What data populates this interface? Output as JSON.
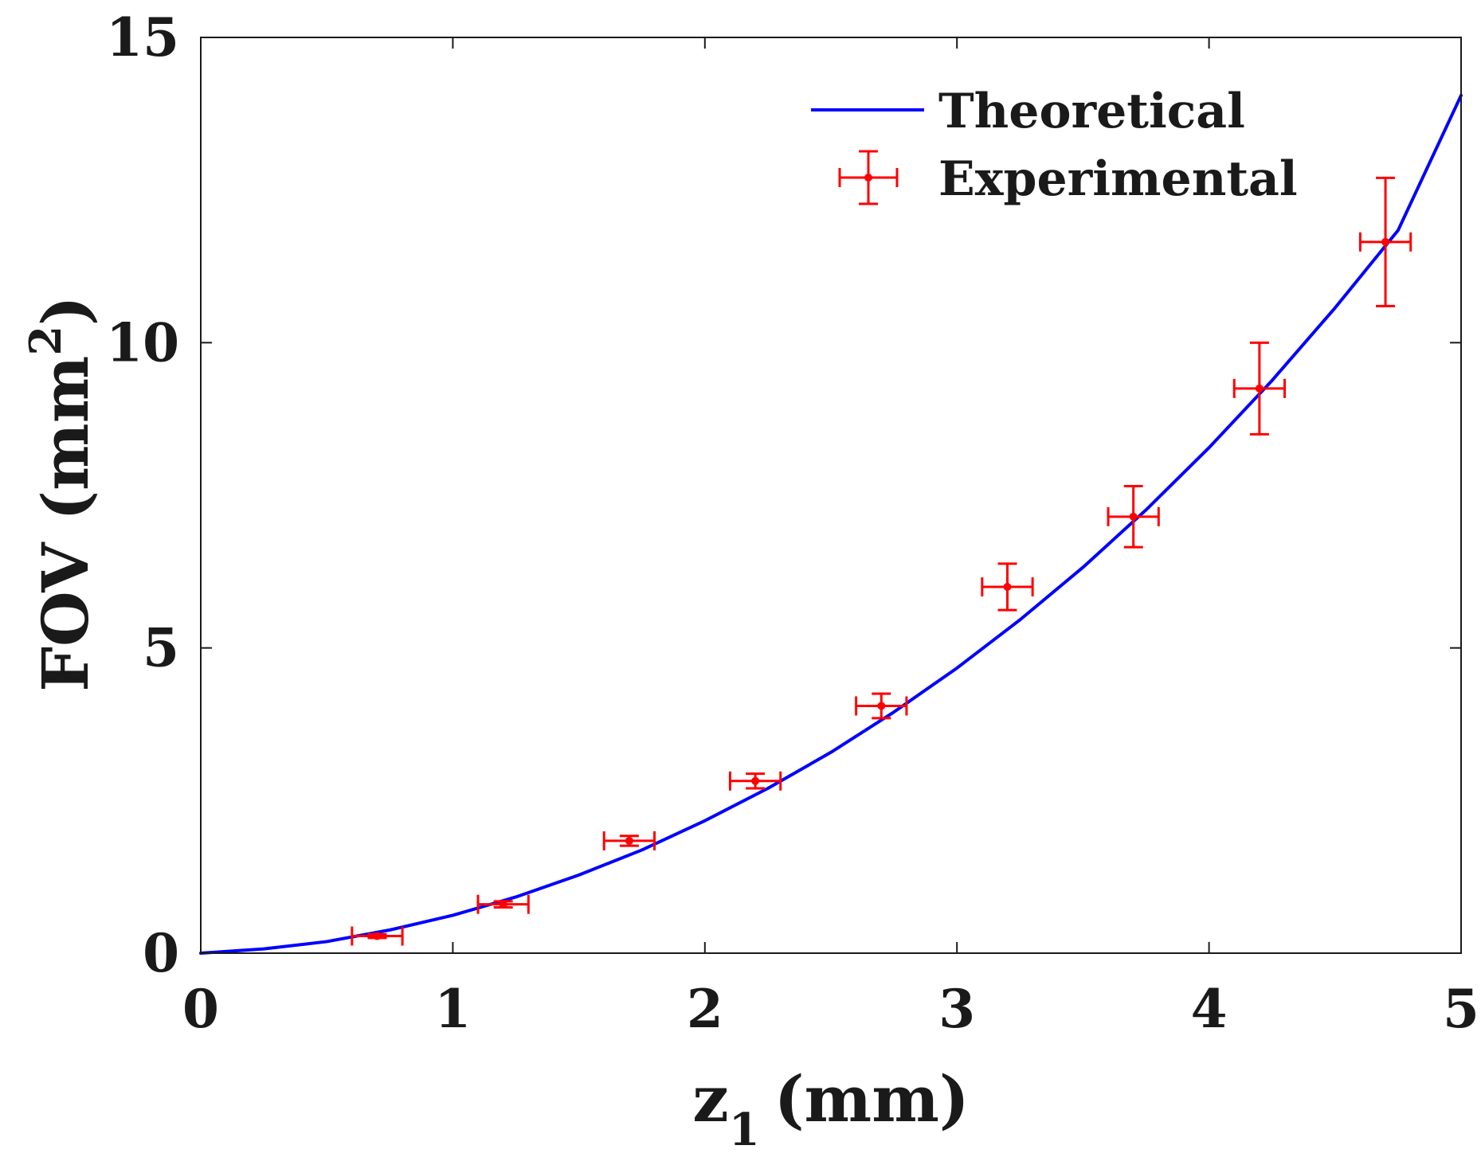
{
  "chart_data": {
    "type": "line",
    "title": "",
    "xlabel": {
      "main": "z",
      "subscript": "1",
      "suffix": "(mm)"
    },
    "ylabel": {
      "main": "FOV (mm",
      "superscript": "2",
      "suffix": ")"
    },
    "xlim": [
      0,
      5
    ],
    "ylim": [
      0,
      15
    ],
    "xticks": [
      0,
      1,
      2,
      3,
      4,
      5
    ],
    "yticks": [
      0,
      5,
      10,
      15
    ],
    "xtick_labels": [
      "0",
      "1",
      "2",
      "3",
      "4",
      "5"
    ],
    "ytick_labels": [
      "0",
      "5",
      "10",
      "15"
    ],
    "grid": false,
    "legend_position": "top-right",
    "series": [
      {
        "name": "Theoretical",
        "style": "line",
        "color": "#0000ff",
        "x": [
          0,
          0.25,
          0.5,
          0.75,
          1.0,
          1.25,
          1.5,
          1.75,
          2.0,
          2.25,
          2.5,
          2.75,
          3.0,
          3.25,
          3.5,
          3.75,
          4.0,
          4.25,
          4.5,
          4.75,
          5.0
        ],
        "y": [
          0,
          0.07,
          0.19,
          0.38,
          0.62,
          0.92,
          1.28,
          1.69,
          2.17,
          2.7,
          3.29,
          3.95,
          4.67,
          5.46,
          6.32,
          7.26,
          8.28,
          9.38,
          10.57,
          11.84,
          14.05
        ]
      },
      {
        "name": "Experimental",
        "style": "errorbar",
        "color": "#ff0000",
        "x": [
          0.7,
          1.2,
          1.7,
          2.2,
          2.7,
          3.2,
          3.7,
          4.2,
          4.7
        ],
        "y": [
          0.28,
          0.8,
          1.84,
          2.82,
          4.05,
          6.0,
          7.15,
          9.25,
          11.65
        ],
        "x_err": [
          0.1,
          0.1,
          0.1,
          0.1,
          0.1,
          0.1,
          0.1,
          0.1,
          0.1
        ],
        "y_err": [
          0.03,
          0.05,
          0.08,
          0.12,
          0.2,
          0.38,
          0.5,
          0.75,
          1.05
        ]
      }
    ]
  }
}
